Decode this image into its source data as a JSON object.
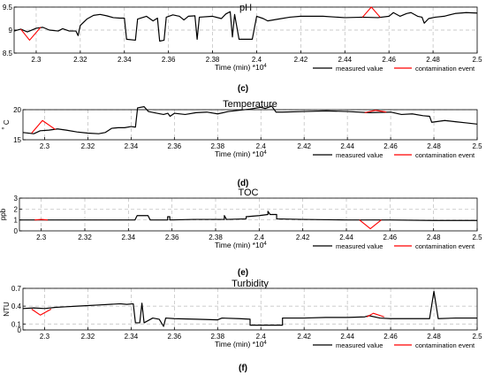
{
  "chart_data": [
    {
      "type": "line",
      "panel_label": "(c)",
      "title": "pH",
      "xlabel": "Time (min) *10",
      "xlabel_exponent": "4",
      "ylabel": "",
      "xlim": [
        2.29,
        2.5
      ],
      "ylim": [
        8.5,
        9.5
      ],
      "x_ticks": [
        2.3,
        2.32,
        2.34,
        2.36,
        2.38,
        2.4,
        2.42,
        2.44,
        2.46,
        2.48,
        2.5
      ],
      "x_tick_labels": [
        "2.3",
        "2.32",
        "2.34",
        "2.36",
        "2.38",
        "2.4",
        "2.42",
        "2.44",
        "2.46",
        "2.48",
        "2.5"
      ],
      "y_ticks": [
        8.5,
        9,
        9.5
      ],
      "y_tick_labels": [
        "8.5",
        "9",
        "9.5"
      ],
      "grid": "dashed",
      "legend": "bottom-right",
      "series": [
        {
          "name": "measured value",
          "color": "#000000",
          "points": [
            [
              2.29,
              8.98
            ],
            [
              2.293,
              9.02
            ],
            [
              2.296,
              8.96
            ],
            [
              2.3,
              9.04
            ],
            [
              2.303,
              9.06
            ],
            [
              2.306,
              9.0
            ],
            [
              2.31,
              8.98
            ],
            [
              2.312,
              9.03
            ],
            [
              2.315,
              8.98
            ],
            [
              2.318,
              8.98
            ],
            [
              2.319,
              8.88
            ],
            [
              2.32,
              9.1
            ],
            [
              2.323,
              9.24
            ],
            [
              2.326,
              9.32
            ],
            [
              2.329,
              9.34
            ],
            [
              2.332,
              9.31
            ],
            [
              2.335,
              9.27
            ],
            [
              2.338,
              9.26
            ],
            [
              2.34,
              9.26
            ],
            [
              2.341,
              8.8
            ],
            [
              2.345,
              8.78
            ],
            [
              2.346,
              9.24
            ],
            [
              2.35,
              9.3
            ],
            [
              2.353,
              9.2
            ],
            [
              2.355,
              9.26
            ],
            [
              2.356,
              8.76
            ],
            [
              2.358,
              8.78
            ],
            [
              2.359,
              9.28
            ],
            [
              2.362,
              9.33
            ],
            [
              2.365,
              9.3
            ],
            [
              2.367,
              9.22
            ],
            [
              2.369,
              9.3
            ],
            [
              2.372,
              9.31
            ],
            [
              2.373,
              8.8
            ],
            [
              2.374,
              9.28
            ],
            [
              2.38,
              9.3
            ],
            [
              2.384,
              9.25
            ],
            [
              2.386,
              9.35
            ],
            [
              2.388,
              9.4
            ],
            [
              2.389,
              8.85
            ],
            [
              2.39,
              9.34
            ],
            [
              2.392,
              8.8
            ],
            [
              2.398,
              8.8
            ],
            [
              2.4,
              9.3
            ],
            [
              2.403,
              9.25
            ],
            [
              2.405,
              9.2
            ],
            [
              2.41,
              9.24
            ],
            [
              2.415,
              9.28
            ],
            [
              2.42,
              9.3
            ],
            [
              2.43,
              9.3
            ],
            [
              2.44,
              9.27
            ],
            [
              2.448,
              9.28
            ],
            [
              2.455,
              9.27
            ],
            [
              2.46,
              9.3
            ],
            [
              2.462,
              9.38
            ],
            [
              2.465,
              9.3
            ],
            [
              2.468,
              9.36
            ],
            [
              2.47,
              9.38
            ],
            [
              2.473,
              9.3
            ],
            [
              2.475,
              9.28
            ],
            [
              2.476,
              9.15
            ],
            [
              2.478,
              9.25
            ],
            [
              2.481,
              9.28
            ],
            [
              2.485,
              9.3
            ],
            [
              2.49,
              9.36
            ],
            [
              2.495,
              9.38
            ],
            [
              2.5,
              9.37
            ]
          ]
        },
        {
          "name": "contamination event",
          "color": "#ff0000",
          "points": [
            [
              2.293,
              9.02
            ],
            [
              2.297,
              8.78
            ],
            [
              2.302,
              9.06
            ]
          ],
          "points_2": [
            [
              2.448,
              9.28
            ],
            [
              2.452,
              9.5
            ],
            [
              2.456,
              9.28
            ]
          ]
        }
      ]
    },
    {
      "type": "line",
      "panel_label": "(d)",
      "title": "Temperature",
      "xlabel": "Time (min) *10",
      "xlabel_exponent": "4",
      "ylabel": "C",
      "ylabel_mark": "°",
      "xlim": [
        2.29,
        2.5
      ],
      "ylim": [
        15,
        20
      ],
      "x_ticks": [
        2.3,
        2.32,
        2.34,
        2.36,
        2.38,
        2.4,
        2.42,
        2.44,
        2.46,
        2.48,
        2.5
      ],
      "x_tick_labels": [
        "2.3",
        "2.32",
        "2.34",
        "2.36",
        "2.38",
        "2.4",
        "2.42",
        "2.44",
        "2.46",
        "2.48",
        "2.5"
      ],
      "y_ticks": [
        15,
        20
      ],
      "y_tick_labels": [
        "15",
        "20"
      ],
      "grid": "dashed",
      "legend": "bottom-right",
      "series": [
        {
          "name": "measured value",
          "color": "#000000",
          "points": [
            [
              2.29,
              16.2
            ],
            [
              2.295,
              16.0
            ],
            [
              2.298,
              16.5
            ],
            [
              2.302,
              16.6
            ],
            [
              2.306,
              16.8
            ],
            [
              2.31,
              16.6
            ],
            [
              2.315,
              16.3
            ],
            [
              2.32,
              16.1
            ],
            [
              2.325,
              16.0
            ],
            [
              2.328,
              16.2
            ],
            [
              2.331,
              16.9
            ],
            [
              2.334,
              17.0
            ],
            [
              2.337,
              17.0
            ],
            [
              2.34,
              17.2
            ],
            [
              2.342,
              17.1
            ],
            [
              2.343,
              20.3
            ],
            [
              2.346,
              20.5
            ],
            [
              2.348,
              19.7
            ],
            [
              2.352,
              19.4
            ],
            [
              2.355,
              19.2
            ],
            [
              2.357,
              19.4
            ],
            [
              2.358,
              18.9
            ],
            [
              2.36,
              19.4
            ],
            [
              2.365,
              19.2
            ],
            [
              2.37,
              19.5
            ],
            [
              2.375,
              19.6
            ],
            [
              2.38,
              19.3
            ],
            [
              2.385,
              19.7
            ],
            [
              2.39,
              19.9
            ],
            [
              2.395,
              20.1
            ],
            [
              2.4,
              20.4
            ],
            [
              2.402,
              20.2
            ],
            [
              2.405,
              20.6
            ],
            [
              2.407,
              19.6
            ],
            [
              2.41,
              19.6
            ],
            [
              2.42,
              19.7
            ],
            [
              2.43,
              19.8
            ],
            [
              2.44,
              19.7
            ],
            [
              2.45,
              19.5
            ],
            [
              2.46,
              19.6
            ],
            [
              2.465,
              19.2
            ],
            [
              2.47,
              19.3
            ],
            [
              2.475,
              19.0
            ],
            [
              2.478,
              18.9
            ],
            [
              2.479,
              17.9
            ],
            [
              2.485,
              18.2
            ],
            [
              2.49,
              18.0
            ],
            [
              2.495,
              17.8
            ],
            [
              2.5,
              17.6
            ]
          ]
        },
        {
          "name": "contamination event",
          "color": "#ff0000",
          "points": [
            [
              2.294,
              16.1
            ],
            [
              2.299,
              18.2
            ],
            [
              2.305,
              16.7
            ]
          ],
          "points_2": [
            [
              2.448,
              19.5
            ],
            [
              2.453,
              19.9
            ],
            [
              2.458,
              19.6
            ]
          ]
        }
      ]
    },
    {
      "type": "line",
      "panel_label": "(e)",
      "title": "TOC",
      "xlabel": "Time (min) *10",
      "xlabel_exponent": "4",
      "ylabel": "ppb",
      "xlim": [
        2.29,
        2.5
      ],
      "ylim": [
        0,
        3
      ],
      "x_ticks": [
        2.3,
        2.32,
        2.34,
        2.36,
        2.38,
        2.4,
        2.42,
        2.44,
        2.46,
        2.48,
        2.5
      ],
      "x_tick_labels": [
        "2.3",
        "2.32",
        "2.34",
        "2.36",
        "2.38",
        "2.4",
        "2.42",
        "2.44",
        "2.46",
        "2.48",
        "2.5"
      ],
      "y_ticks": [
        0,
        1,
        2,
        3
      ],
      "y_tick_labels": [
        "0",
        "1",
        "2",
        "3"
      ],
      "grid": "dashed",
      "legend": "bottom-right",
      "series": [
        {
          "name": "measured value",
          "color": "#000000",
          "points": [
            [
              2.29,
              1.0
            ],
            [
              2.3,
              1.0
            ],
            [
              2.31,
              1.0
            ],
            [
              2.32,
              1.0
            ],
            [
              2.33,
              1.0
            ],
            [
              2.343,
              1.0
            ],
            [
              2.344,
              1.4
            ],
            [
              2.349,
              1.4
            ],
            [
              2.35,
              1.0
            ],
            [
              2.358,
              1.0
            ],
            [
              2.358,
              1.3
            ],
            [
              2.359,
              1.3
            ],
            [
              2.359,
              1.0
            ],
            [
              2.37,
              1.05
            ],
            [
              2.384,
              1.05
            ],
            [
              2.384,
              1.4
            ],
            [
              2.385,
              1.05
            ],
            [
              2.394,
              1.1
            ],
            [
              2.394,
              1.3
            ],
            [
              2.4,
              1.4
            ],
            [
              2.404,
              1.5
            ],
            [
              2.404,
              1.8
            ],
            [
              2.405,
              1.5
            ],
            [
              2.408,
              1.5
            ],
            [
              2.408,
              1.1
            ],
            [
              2.42,
              1.05
            ],
            [
              2.44,
              1.0
            ],
            [
              2.46,
              1.0
            ],
            [
              2.48,
              0.95
            ],
            [
              2.5,
              0.95
            ]
          ]
        },
        {
          "name": "contamination event",
          "color": "#ff0000",
          "points": [
            [
              2.297,
              1.0
            ],
            [
              2.3,
              1.05
            ],
            [
              2.303,
              1.0
            ]
          ],
          "points_2": [
            [
              2.446,
              1.0
            ],
            [
              2.451,
              0.2
            ],
            [
              2.456,
              1.0
            ]
          ]
        }
      ]
    },
    {
      "type": "line",
      "panel_label": "(f)",
      "title": "Turbidity",
      "xlabel": "Time (min) *10",
      "xlabel_exponent": "4",
      "ylabel": "NTU",
      "xlim": [
        2.29,
        2.5
      ],
      "ylim": [
        0,
        0.7
      ],
      "x_ticks": [
        2.3,
        2.32,
        2.34,
        2.36,
        2.38,
        2.4,
        2.42,
        2.44,
        2.46,
        2.48,
        2.5
      ],
      "x_tick_labels": [
        "2.3",
        "2.32",
        "2.34",
        "2.36",
        "2.38",
        "2.4",
        "2.42",
        "2.44",
        "2.46",
        "2.48",
        "2.5"
      ],
      "y_ticks": [
        0,
        0.1,
        0.4,
        0.7
      ],
      "y_tick_labels": [
        "0",
        "0.1",
        "0.4",
        "0.7"
      ],
      "grid": "dashed",
      "legend": "bottom-right",
      "series": [
        {
          "name": "measured value",
          "color": "#000000",
          "points": [
            [
              2.29,
              0.36
            ],
            [
              2.295,
              0.37
            ],
            [
              2.3,
              0.36
            ],
            [
              2.305,
              0.38
            ],
            [
              2.31,
              0.39
            ],
            [
              2.315,
              0.4
            ],
            [
              2.32,
              0.41
            ],
            [
              2.325,
              0.42
            ],
            [
              2.33,
              0.43
            ],
            [
              2.335,
              0.44
            ],
            [
              2.338,
              0.43
            ],
            [
              2.341,
              0.44
            ],
            [
              2.342,
              0.12
            ],
            [
              2.344,
              0.12
            ],
            [
              2.345,
              0.45
            ],
            [
              2.346,
              0.12
            ],
            [
              2.35,
              0.2
            ],
            [
              2.353,
              0.18
            ],
            [
              2.355,
              0.06
            ],
            [
              2.356,
              0.2
            ],
            [
              2.36,
              0.19
            ],
            [
              2.37,
              0.18
            ],
            [
              2.38,
              0.17
            ],
            [
              2.382,
              0.2
            ],
            [
              2.39,
              0.19
            ],
            [
              2.395,
              0.18
            ],
            [
              2.395,
              0.08
            ],
            [
              2.41,
              0.08
            ],
            [
              2.41,
              0.2
            ],
            [
              2.42,
              0.2
            ],
            [
              2.43,
              0.21
            ],
            [
              2.44,
              0.21
            ],
            [
              2.448,
              0.22
            ],
            [
              2.45,
              0.24
            ],
            [
              2.455,
              0.2
            ],
            [
              2.46,
              0.19
            ],
            [
              2.47,
              0.19
            ],
            [
              2.478,
              0.19
            ],
            [
              2.48,
              0.65
            ],
            [
              2.482,
              0.19
            ],
            [
              2.49,
              0.2
            ],
            [
              2.5,
              0.2
            ]
          ]
        },
        {
          "name": "contamination event",
          "color": "#ff0000",
          "points": [
            [
              2.294,
              0.35
            ],
            [
              2.298,
              0.25
            ],
            [
              2.303,
              0.35
            ]
          ],
          "points_2": [
            [
              2.449,
              0.22
            ],
            [
              2.452,
              0.28
            ],
            [
              2.457,
              0.22
            ]
          ]
        }
      ]
    }
  ]
}
